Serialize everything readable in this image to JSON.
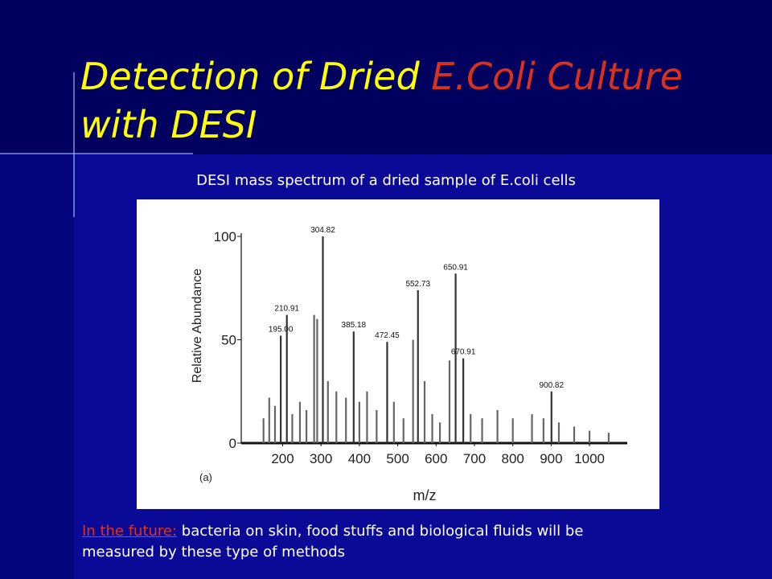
{
  "slide": {
    "title_parts": [
      "Detection of Dried ",
      "E.Coli Culture",
      "with DESI"
    ],
    "caption": "DESI mass spectrum of a dried sample of E.coli cells",
    "note_lead": "In the future:",
    "note_text": " bacteria on skin, food stuffs and biological fluids will be",
    "note_text_2": "measured by these type of methods"
  },
  "chart_data": {
    "type": "stem",
    "panel_label": "(a)",
    "x_label": "m/z",
    "y_label": "Relative Abundance",
    "x": [
      150,
      165,
      180,
      195,
      210.91,
      225,
      245,
      262,
      282,
      290,
      304.82,
      318,
      340,
      365,
      385.18,
      400,
      420,
      445,
      472.45,
      490,
      515,
      540,
      552.73,
      570,
      590,
      610,
      635,
      650.91,
      670.91,
      690,
      720,
      760,
      800,
      850,
      880,
      900.82,
      920,
      960,
      1000,
      1050
    ],
    "values": [
      12,
      22,
      18,
      52,
      62,
      14,
      20,
      16,
      62,
      60,
      100,
      30,
      25,
      22,
      54,
      20,
      25,
      16,
      49,
      20,
      12,
      50,
      74,
      30,
      14,
      10,
      40,
      82,
      41,
      14,
      12,
      16,
      12,
      14,
      12,
      25,
      10,
      8,
      6,
      5
    ],
    "x_labels": [
      null,
      null,
      null,
      "195.00",
      "210.91",
      null,
      null,
      null,
      null,
      null,
      "304.82",
      null,
      null,
      null,
      "385.18",
      null,
      null,
      null,
      "472.45",
      null,
      null,
      null,
      "552.73",
      null,
      null,
      null,
      null,
      "650.91",
      "670.91",
      null,
      null,
      null,
      null,
      null,
      null,
      "900.82",
      null,
      null,
      null,
      null
    ],
    "color": "#666666",
    "xlim": [
      92,
      1090
    ],
    "xticks": [
      200,
      300,
      400,
      500,
      600,
      700,
      800,
      900,
      1000
    ],
    "ylim": [
      0,
      100
    ],
    "yticks": [
      0,
      50,
      100
    ]
  }
}
